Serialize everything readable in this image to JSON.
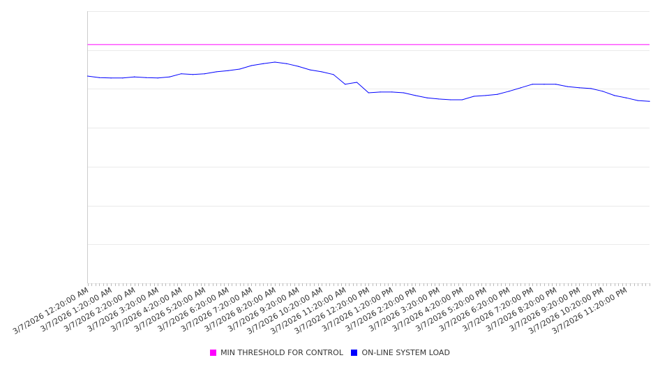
{
  "chart_data": {
    "type": "line",
    "title": "",
    "xlabel": "",
    "ylabel": "",
    "ylim": [
      0,
      70
    ],
    "grid": true,
    "legend_placement": "bottom-center",
    "x_tick_labels": [
      "3/7/2026 12:20:00 AM",
      "3/7/2026 1:20:00 AM",
      "3/7/2026 2:20:00 AM",
      "3/7/2026 3:20:00 AM",
      "3/7/2026 4:20:00 AM",
      "3/7/2026 5:20:00 AM",
      "3/7/2026 6:20:00 AM",
      "3/7/2026 7:20:00 AM",
      "3/7/2026 8:20:00 AM",
      "3/7/2026 9:20:00 AM",
      "3/7/2026 10:20:00 AM",
      "3/7/2026 11:20:00 AM",
      "3/7/2026 12:20:00 PM",
      "3/7/2026 1:20:00 PM",
      "3/7/2026 2:20:00 PM",
      "3/7/2026 3:20:00 PM",
      "3/7/2026 4:20:00 PM",
      "3/7/2026 5:20:00 PM",
      "3/7/2026 6:20:00 PM",
      "3/7/2026 7:20:00 PM",
      "3/7/2026 8:20:00 PM",
      "3/7/2026 9:20:00 PM",
      "3/7/2026 10:20:00 PM",
      "3/7/2026 11:20:00 PM"
    ],
    "x_hours": [
      0,
      0.5,
      1,
      1.5,
      2,
      2.5,
      3,
      3.5,
      4,
      4.5,
      5,
      5.5,
      6,
      6.5,
      7,
      7.5,
      8,
      8.5,
      9,
      9.5,
      10,
      10.5,
      11,
      11.5,
      12,
      12.5,
      13,
      13.5,
      14,
      14.5,
      15,
      15.5,
      16,
      16.5,
      17,
      17.5,
      18,
      18.5,
      19,
      19.5,
      20,
      20.5,
      21,
      21.5,
      22,
      22.5,
      23,
      23.5,
      24
    ],
    "series": [
      {
        "name": "MIN THRESHOLD FOR CONTROL",
        "color": "#ff00ff",
        "constant": 61.4
      },
      {
        "name": "ON-LINE SYSTEM LOAD",
        "color": "#0000ff",
        "values": [
          53.3,
          52.9,
          52.8,
          52.8,
          53.1,
          52.9,
          52.8,
          53.1,
          53.9,
          53.7,
          53.9,
          54.4,
          54.7,
          55.1,
          56.0,
          56.5,
          56.9,
          56.5,
          55.8,
          54.9,
          54.4,
          53.7,
          51.2,
          51.7,
          49.0,
          49.2,
          49.2,
          49.0,
          48.3,
          47.7,
          47.4,
          47.2,
          47.2,
          48.1,
          48.3,
          48.6,
          49.4,
          50.3,
          51.2,
          51.2,
          51.2,
          50.6,
          50.3,
          50.1,
          49.4,
          48.3,
          47.7,
          47.0,
          46.8
        ]
      }
    ]
  }
}
